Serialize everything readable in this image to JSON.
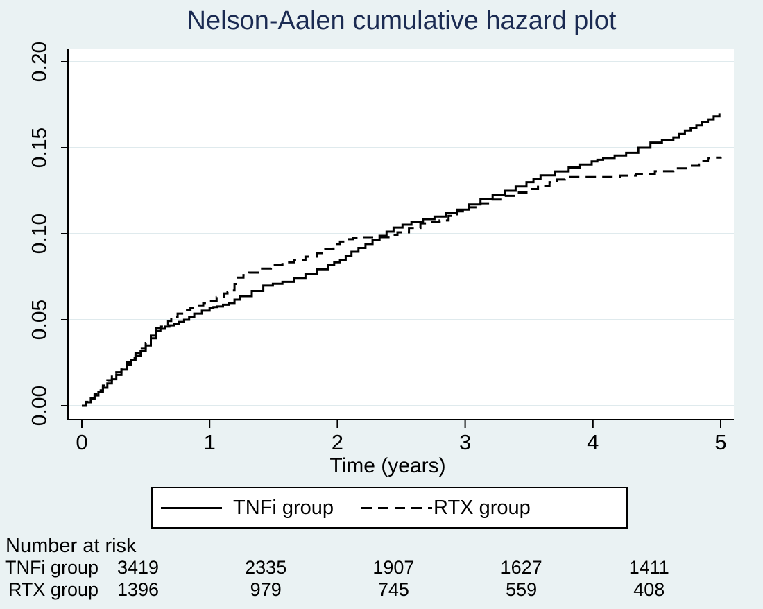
{
  "chart_data": {
    "type": "line",
    "title": "Nelson-Aalen cumulative hazard plot",
    "xlabel": "Time (years)",
    "ylabel": "",
    "xlim": [
      0,
      5
    ],
    "ylim": [
      0,
      0.2
    ],
    "x_ticks": [
      "0",
      "1",
      "2",
      "3",
      "4",
      "5"
    ],
    "y_ticks": [
      0,
      0.05,
      0.1,
      0.15,
      0.2
    ],
    "y_tick_labels": [
      "0.00",
      "0.05",
      "0.10",
      "0.15",
      "0.20"
    ],
    "grid": "horizontal",
    "legend": {
      "position": "bottom"
    },
    "series": [
      {
        "name": "TNFi group",
        "line_style": "solid",
        "color": "#000000",
        "points": [
          [
            0,
            0
          ],
          [
            0.07,
            0.004
          ],
          [
            0.13,
            0.008
          ],
          [
            0.2,
            0.013
          ],
          [
            0.27,
            0.018
          ],
          [
            0.35,
            0.024
          ],
          [
            0.42,
            0.029
          ],
          [
            0.5,
            0.035
          ],
          [
            0.58,
            0.0435
          ],
          [
            0.65,
            0.046
          ],
          [
            0.72,
            0.0475
          ],
          [
            0.8,
            0.05
          ],
          [
            0.88,
            0.0536
          ],
          [
            1.0,
            0.057
          ],
          [
            1.06,
            0.0577
          ],
          [
            1.15,
            0.0597
          ],
          [
            1.24,
            0.0637
          ],
          [
            1.42,
            0.0698
          ],
          [
            1.57,
            0.072
          ],
          [
            1.75,
            0.0766
          ],
          [
            1.93,
            0.082
          ],
          [
            2.02,
            0.0847
          ],
          [
            2.11,
            0.0895
          ],
          [
            2.22,
            0.094
          ],
          [
            2.33,
            0.0988
          ],
          [
            2.44,
            0.1036
          ],
          [
            2.58,
            0.1069
          ],
          [
            2.76,
            0.11
          ],
          [
            2.94,
            0.114
          ],
          [
            3.12,
            0.12
          ],
          [
            3.31,
            0.125
          ],
          [
            3.48,
            0.13
          ],
          [
            3.59,
            0.134
          ],
          [
            3.81,
            0.1385
          ],
          [
            3.99,
            0.142
          ],
          [
            4.08,
            0.144
          ],
          [
            4.26,
            0.147
          ],
          [
            4.45,
            0.153
          ],
          [
            4.63,
            0.156
          ],
          [
            4.72,
            0.16
          ],
          [
            4.81,
            0.163
          ],
          [
            4.9,
            0.1665
          ],
          [
            4.99,
            0.17
          ]
        ]
      },
      {
        "name": "RTX group",
        "line_style": "dashed",
        "color": "#000000",
        "points": [
          [
            0,
            0
          ],
          [
            0.07,
            0.0045
          ],
          [
            0.13,
            0.009
          ],
          [
            0.2,
            0.0145
          ],
          [
            0.27,
            0.0195
          ],
          [
            0.35,
            0.0255
          ],
          [
            0.42,
            0.0305
          ],
          [
            0.5,
            0.0365
          ],
          [
            0.58,
            0.045
          ],
          [
            0.65,
            0.047
          ],
          [
            0.7,
            0.0516
          ],
          [
            0.8,
            0.0556
          ],
          [
            0.9,
            0.0584
          ],
          [
            1.0,
            0.061
          ],
          [
            1.11,
            0.0653
          ],
          [
            1.17,
            0.067
          ],
          [
            1.22,
            0.0745
          ],
          [
            1.31,
            0.0774
          ],
          [
            1.48,
            0.082
          ],
          [
            1.66,
            0.0847
          ],
          [
            1.84,
            0.0887
          ],
          [
            1.97,
            0.094
          ],
          [
            2.07,
            0.0968
          ],
          [
            2.18,
            0.098
          ],
          [
            2.33,
            0.098
          ],
          [
            2.47,
            0.1008
          ],
          [
            2.65,
            0.106
          ],
          [
            2.8,
            0.1077
          ],
          [
            2.94,
            0.113
          ],
          [
            3.12,
            0.1177
          ],
          [
            3.31,
            0.122
          ],
          [
            3.48,
            0.126
          ],
          [
            3.66,
            0.13
          ],
          [
            3.78,
            0.133
          ],
          [
            4.08,
            0.133
          ],
          [
            4.34,
            0.1347
          ],
          [
            4.63,
            0.138
          ],
          [
            4.83,
            0.141
          ],
          [
            4.9,
            0.144
          ],
          [
            5.0,
            0.1445
          ]
        ]
      }
    ],
    "risk_table": {
      "header": "Number at risk",
      "time_points": [
        0,
        1,
        2,
        3,
        4
      ],
      "rows": [
        {
          "label": "TNFi group",
          "values": [
            "3419",
            "2335",
            "1907",
            "1627",
            "1411"
          ]
        },
        {
          "label": "RTX group",
          "values": [
            "1396",
            "979",
            "745",
            "559",
            "408"
          ]
        }
      ]
    },
    "colors": {
      "background": "#eaf2f3",
      "plot_background": "#ffffff",
      "gridline": "#dfeaed",
      "axis": "#000000",
      "title": "#1b2b52",
      "curves": "#000000"
    }
  }
}
